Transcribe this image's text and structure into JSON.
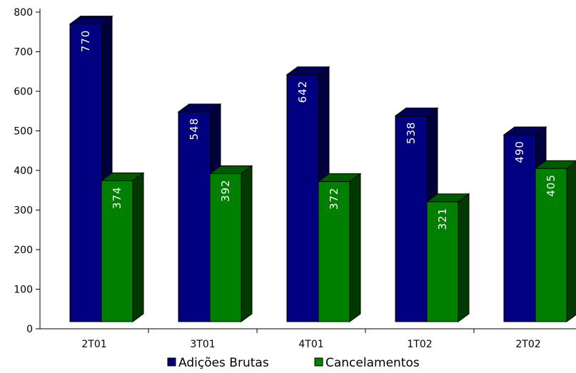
{
  "chart_data": {
    "type": "bar",
    "categories": [
      "2T01",
      "3T01",
      "4T01",
      "1T02",
      "2T02"
    ],
    "series": [
      {
        "name": "Adições Brutas",
        "values": [
          770,
          548,
          642,
          538,
          490
        ],
        "color": "#000080"
      },
      {
        "name": "Cancelamentos",
        "values": [
          374,
          392,
          372,
          321,
          405
        ],
        "color": "#008000"
      }
    ],
    "y_ticks": [
      0,
      100,
      200,
      300,
      400,
      500,
      600,
      700,
      800
    ],
    "ylim": [
      0,
      800
    ],
    "grid": false,
    "legend_position": "bottom",
    "style": "3d-column"
  }
}
